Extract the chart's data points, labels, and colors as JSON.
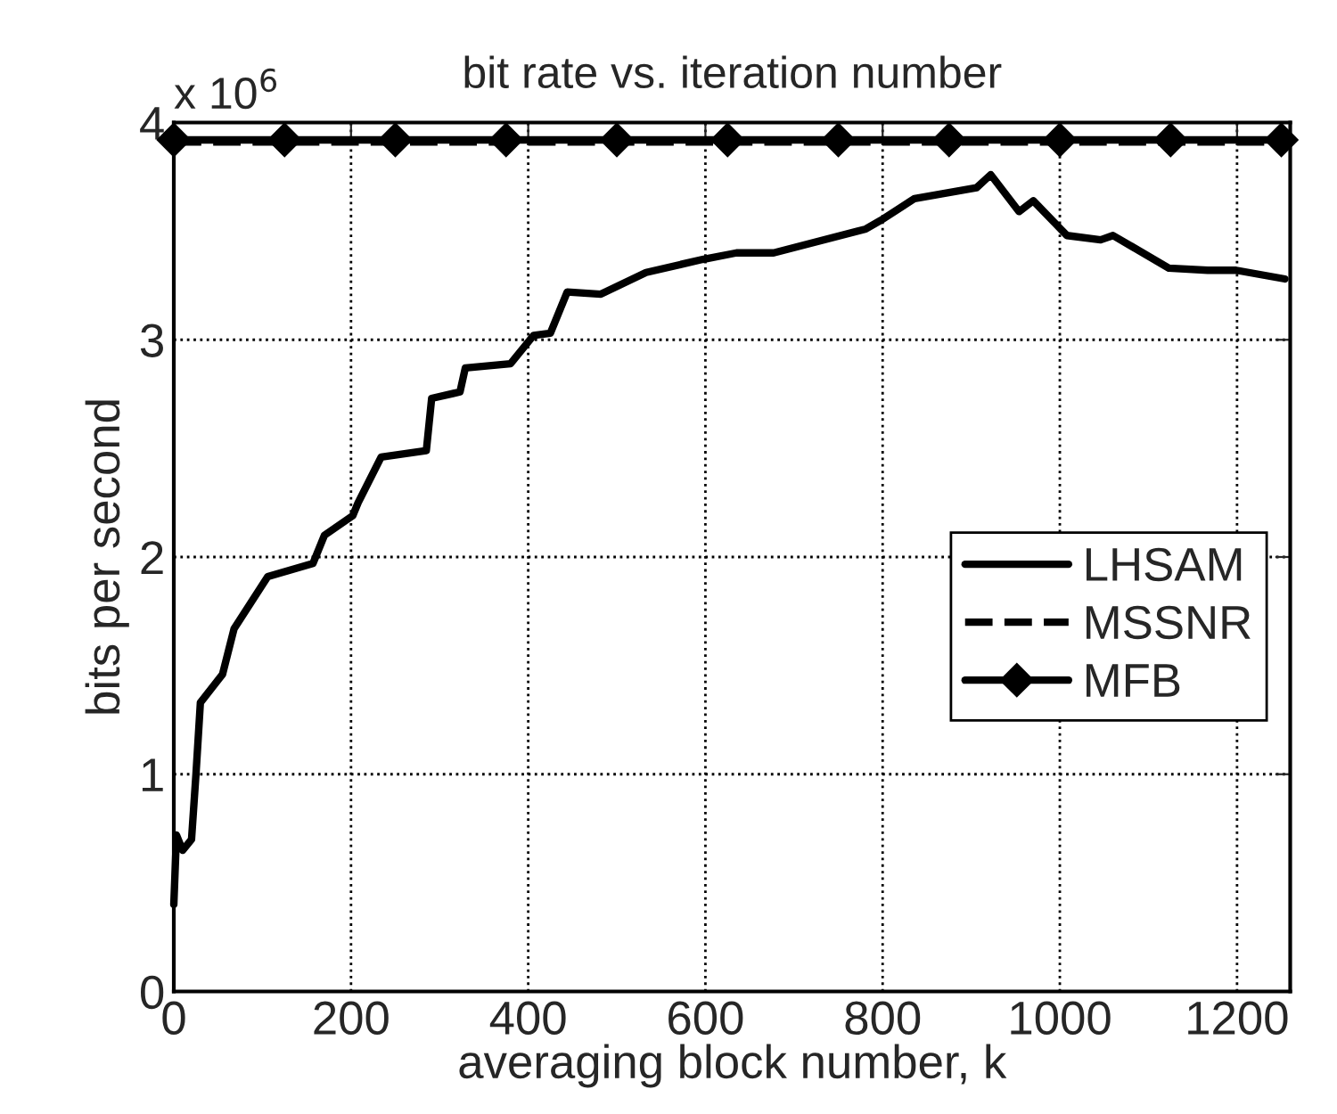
{
  "chart_data": {
    "type": "line",
    "title": "bit rate vs. iteration number",
    "xlabel": "averaging block number, k",
    "ylabel": "bits per second",
    "annotations": [
      "x 10$^{6}$"
    ],
    "xlim": [
      0,
      1260
    ],
    "xticks": [
      0,
      200,
      400,
      600,
      800,
      1000,
      1200
    ],
    "ylim": [
      0,
      4
    ],
    "yticks": [
      0,
      1,
      2,
      3,
      4
    ],
    "grid": true,
    "legend": "right",
    "series": [
      {
        "name": "LHSAM",
        "color": "#000000",
        "line_style": "solid",
        "marker": "none",
        "x": [
          0,
          3,
          10,
          20,
          25,
          30,
          55,
          68,
          106,
          157,
          170,
          202,
          208,
          234,
          285,
          291,
          323,
          329,
          380,
          406,
          425,
          444,
          482,
          533,
          597,
          635,
          677,
          781,
          798,
          836,
          906,
          922,
          954,
          970,
          1008,
          1046,
          1060,
          1123,
          1167,
          1199,
          1254
        ],
        "values": [
          0.4,
          0.72,
          0.65,
          0.7,
          1.0,
          1.33,
          1.46,
          1.67,
          1.91,
          1.97,
          2.1,
          2.19,
          2.25,
          2.46,
          2.49,
          2.73,
          2.76,
          2.87,
          2.89,
          3.02,
          3.03,
          3.22,
          3.21,
          3.31,
          3.37,
          3.4,
          3.4,
          3.51,
          3.55,
          3.65,
          3.7,
          3.76,
          3.59,
          3.64,
          3.48,
          3.46,
          3.48,
          3.33,
          3.32,
          3.32,
          3.28
        ]
      },
      {
        "name": "MSSNR",
        "color": "#000000",
        "line_style": "dashed",
        "marker": "none",
        "x": [
          0,
          1260
        ],
        "values": [
          3.91,
          3.91
        ]
      },
      {
        "name": "MFB",
        "color": "#000000",
        "line_style": "solid",
        "marker": "diamond",
        "x": [
          0,
          125,
          250,
          375,
          500,
          625,
          750,
          875,
          1000,
          1125,
          1250
        ],
        "values": [
          3.92,
          3.92,
          3.92,
          3.92,
          3.92,
          3.92,
          3.92,
          3.92,
          3.92,
          3.92,
          3.92
        ]
      }
    ]
  }
}
